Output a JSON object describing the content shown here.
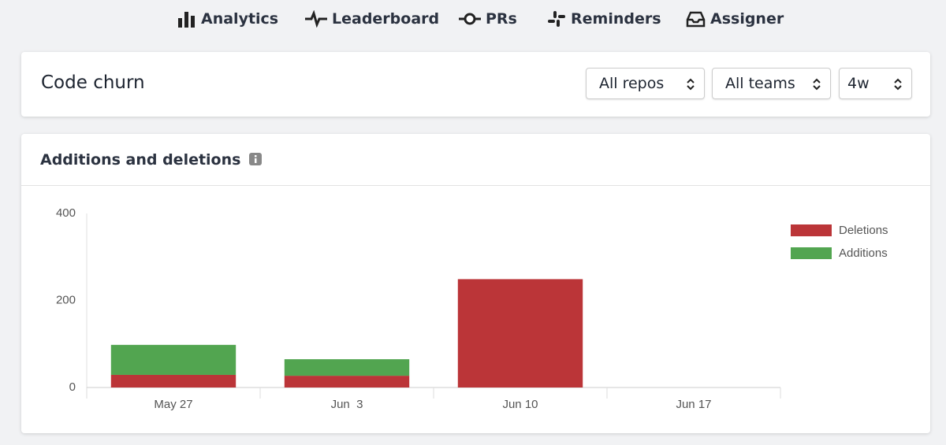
{
  "nav": [
    "Analytics",
    "Leaderboard",
    "PRs",
    "Reminders",
    "Assigner"
  ],
  "header": {
    "title": "Code churn",
    "filters": [
      "All repos",
      "All teams",
      "4w"
    ]
  },
  "panel_title": "Additions and deletions",
  "chart_data": {
    "type": "bar",
    "stacked": true,
    "categories": [
      "May 27",
      "Jun  3",
      "Jun 10",
      "Jun 17"
    ],
    "series": [
      {
        "name": "Deletions",
        "color": "#bb3538",
        "values": [
          29,
          27,
          249,
          0
        ]
      },
      {
        "name": "Additions",
        "color": "#52a550",
        "values": [
          69,
          38,
          0,
          0
        ]
      }
    ],
    "ylim": [
      0,
      400
    ],
    "yticks": [
      0,
      200,
      400
    ],
    "legend": "right"
  }
}
